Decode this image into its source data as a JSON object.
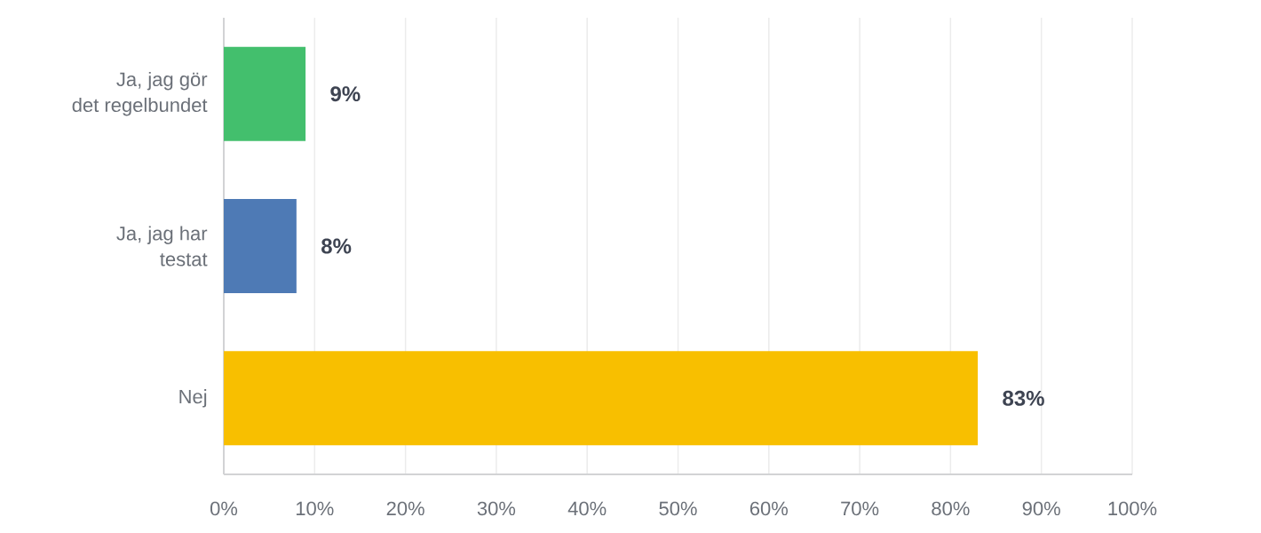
{
  "chart_data": {
    "type": "bar",
    "orientation": "horizontal",
    "categories": [
      "Ja, jag gör det regelbundet",
      "Ja, jag har testat",
      "Nej"
    ],
    "values": [
      9,
      8,
      83
    ],
    "colors": [
      "#43bf6d",
      "#4e7ab5",
      "#f8bf00"
    ],
    "value_labels": [
      "9%",
      "8%",
      "83%"
    ],
    "xlim": [
      0,
      100
    ],
    "xticks": [
      {
        "value": 0,
        "label": "0%"
      },
      {
        "value": 10,
        "label": "10%"
      },
      {
        "value": 20,
        "label": "20%"
      },
      {
        "value": 30,
        "label": "30%"
      },
      {
        "value": 40,
        "label": "40%"
      },
      {
        "value": 50,
        "label": "50%"
      },
      {
        "value": 60,
        "label": "60%"
      },
      {
        "value": 70,
        "label": "70%"
      },
      {
        "value": 80,
        "label": "80%"
      },
      {
        "value": 90,
        "label": "90%"
      },
      {
        "value": 100,
        "label": "100%"
      }
    ],
    "grid": "x"
  }
}
